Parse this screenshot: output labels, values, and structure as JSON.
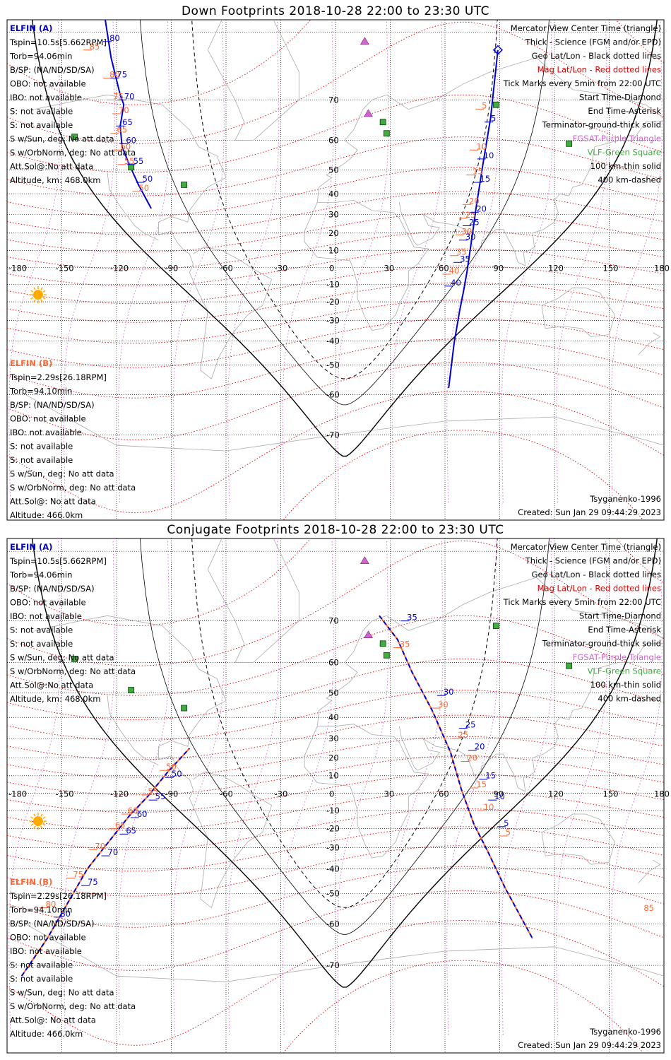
{
  "colors": {
    "elfin_a": "#0000cc",
    "elfin_b": "#ff6633",
    "mag_grid": "#dd0000",
    "geo_grid": "#000000",
    "fgm": "#cc66cc",
    "vlf": "#44aa44",
    "coast": "#aaaaaa"
  },
  "panels": [
    {
      "title": "Down Footprints 2018-10-28 22:00 to 23:30 UTC",
      "a_info": {
        "name": "ELFIN (A)",
        "lines": [
          "Tspin=10.5s[5.662RPM]",
          "Torb=94.06min",
          "B/SP: (NA/ND/SD/SA)",
          "OBO: not available",
          "IBO: not available",
          "S: not available",
          "S: not available",
          "S w/Sun, deg: No att data",
          "S w/OrbNorm, deg: No att data",
          "Att.Sol@:No att data",
          "Altitude, km: 468.0km"
        ]
      },
      "b_info": {
        "name": "ELFIN (B)",
        "lines": [
          "Tspin=2.29s[26.18RPM]",
          "Torb=94.10min",
          "B/SP: (NA/ND/SD/SA)",
          "OBO: not available",
          "IBO: not available",
          "S: not available",
          "S: not available",
          "S w/Sun, deg: No att data",
          "S w/OrbNorm, deg: No att data",
          "Att.Sol@: No att data",
          "Altitude: 466.0km"
        ]
      },
      "legend": [
        "Mercator View Center Time (triangle)",
        "Thick - Science (FGM and/or EPD)",
        "Geo Lat/Lon - Black dotted lines",
        "Mag Lat/Lon - Red dotted lines",
        "Tick Marks every 5min from 22:00 UTC",
        "Start Time-Diamond",
        "End Time-Asterisk",
        "Terminator-ground-thick solid",
        "FGSAT-Purple Triangle",
        "VLF-Green Square",
        "100 km-thin solid",
        "400 km-dashed"
      ],
      "model": "Tsyganenko-1996",
      "created": "Created: Sun Jan 29 09:44:29 2023"
    },
    {
      "title": "Conjugate Footprints 2018-10-28 22:00 to 23:30 UTC",
      "a_info": {
        "name": "ELFIN (A)",
        "lines": [
          "Tspin=10.5s[5.662RPM]",
          "Torb=94.06min",
          "B/SP: (NA/ND/SD/SA)",
          "OBO: not available",
          "IBO: not available",
          "S: not available",
          "S: not available",
          "S w/Sun, deg: No att data",
          "S w/OrbNorm, deg: No att data",
          "Att.Sol@:No att data",
          "Altitude, km: 468.0km"
        ]
      },
      "b_info": {
        "name": "ELFIN (B)",
        "lines": [
          "Tspin=2.29s[26.18RPM]",
          "Torb=94.10min",
          "B/SP: (NA/ND/SD/SA)",
          "OBO: not available",
          "IBO: not available",
          "S: not available",
          "S: not available",
          "S w/Sun, deg: No att data",
          "S w/OrbNorm, deg: No att data",
          "Att.Sol@: No att data",
          "Altitude: 466.0km"
        ]
      },
      "legend": [
        "Mercator View Center Time (triangle)",
        "Thick - Science (FGM and/or EPD)",
        "Geo Lat/Lon - Black dotted lines",
        "Mag Lat/Lon - Red dotted lines",
        "Tick Marks every 5min from 22:00 UTC",
        "Start Time-Diamond",
        "End Time-Asterisk",
        "Terminator-ground-thick solid",
        "FGSAT-Purple Triangle",
        "VLF-Green Square",
        "100 km-thin solid",
        "400 km-dashed"
      ],
      "model": "Tsyganenko-1996",
      "created": "Created: Sun Jan 29 09:44:29 2023"
    }
  ],
  "map": {
    "lon_ticks": [
      "-180",
      "-150",
      "-120",
      "-90",
      "-60",
      "-30",
      "0",
      "30",
      "60",
      "90",
      "120",
      "150",
      "180"
    ],
    "lat_ticks": [
      "70",
      "60",
      "50",
      "40",
      "30",
      "20",
      "10",
      "-10",
      "-20",
      "-30",
      "-40",
      "-50",
      "-60",
      "-70"
    ]
  },
  "tracks": {
    "down": {
      "a": [
        [
          -135,
          87
        ],
        [
          -126,
          81
        ],
        [
          -123,
          77
        ],
        [
          -118,
          71
        ],
        [
          -116,
          69
        ],
        [
          -118,
          64
        ],
        [
          -117,
          58
        ],
        [
          -113,
          52
        ],
        [
          -108,
          44
        ],
        [
          -101,
          33
        ]
      ],
      "a_ticks": [
        [
          "85",
          -131,
          84
        ],
        [
          "80",
          -125,
          79
        ],
        [
          "75",
          -121,
          74
        ],
        [
          "70",
          -117,
          70
        ],
        [
          "65",
          -118,
          64
        ],
        [
          "60",
          -116,
          59
        ],
        [
          "55",
          -112,
          52
        ],
        [
          "50",
          -107,
          45
        ]
      ],
      "b_ticks": [
        [
          "85",
          -136,
          78
        ],
        [
          "80",
          -125,
          74
        ],
        [
          "75",
          -123,
          70
        ],
        [
          "70",
          -120,
          67
        ],
        [
          "65",
          -121,
          62
        ],
        [
          "60",
          -119,
          57
        ],
        [
          "55",
          -117,
          52
        ],
        [
          "50",
          -109,
          41
        ]
      ],
      "a2": [
        [
          89,
          78
        ],
        [
          85,
          66
        ],
        [
          81,
          53
        ],
        [
          77,
          33
        ],
        [
          75,
          19
        ],
        [
          72,
          -3
        ],
        [
          70,
          -15
        ],
        [
          68,
          -25
        ],
        [
          65,
          -41
        ],
        [
          62,
          -58
        ]
      ],
      "a2_ticks": [
        [
          "5",
          84,
          65
        ],
        [
          "10",
          80,
          54
        ],
        [
          "15",
          78,
          45
        ],
        [
          "20",
          76,
          31
        ],
        [
          "25",
          72,
          24
        ],
        [
          "30",
          70,
          16
        ],
        [
          "35",
          67,
          3
        ],
        [
          "40",
          62,
          -11
        ]
      ],
      "b2_ticks": [
        [
          "5",
          79,
          68
        ],
        [
          "10",
          76,
          57
        ],
        [
          "15",
          74,
          48
        ],
        [
          "20",
          72,
          35
        ],
        [
          "25",
          70,
          28
        ],
        [
          "30",
          68,
          19
        ],
        [
          "35",
          65,
          7
        ],
        [
          "40",
          61,
          -4
        ]
      ]
    },
    "conj": {
      "a": [
        [
          -172,
          -72
        ],
        [
          -158,
          -64
        ],
        [
          -136,
          -40
        ],
        [
          -126,
          -29
        ],
        [
          -113,
          -13
        ],
        [
          -103,
          -2
        ],
        [
          -92,
          12
        ],
        [
          -80,
          25
        ]
      ],
      "a_ticks": [
        [
          "80",
          -152,
          -58
        ],
        [
          "75",
          -137,
          -47
        ],
        [
          "70",
          -126,
          -34
        ],
        [
          "65",
          -116,
          -23
        ],
        [
          "60",
          -110,
          -14
        ],
        [
          "55",
          -100,
          -4
        ],
        [
          "50",
          -91,
          9
        ]
      ],
      "b_ticks": [
        [
          "80",
          -160,
          -55
        ],
        [
          "75",
          -145,
          -44
        ],
        [
          "70",
          -133,
          -31
        ],
        [
          "65",
          -122,
          -20
        ],
        [
          "60",
          -115,
          -12
        ],
        [
          "55",
          -104,
          -1
        ],
        [
          "50",
          -94,
          13
        ]
      ],
      "a2": [
        [
          24,
          71
        ],
        [
          34,
          66
        ],
        [
          42,
          57
        ],
        [
          53,
          43
        ],
        [
          63,
          23
        ],
        [
          69,
          2
        ],
        [
          76,
          -18
        ],
        [
          83,
          -31
        ],
        [
          93,
          -48
        ],
        [
          108,
          -64
        ]
      ],
      "a2_ticks": [
        [
          "35",
          38,
          70
        ],
        [
          "30",
          58,
          49
        ],
        [
          "25",
          70,
          35
        ],
        [
          "20",
          75,
          24
        ],
        [
          "15",
          81,
          8
        ],
        [
          "10",
          86,
          -4
        ],
        [
          "5",
          91,
          -19
        ]
      ],
      "b2_ticks": [
        [
          "35",
          34,
          64
        ],
        [
          "30",
          55,
          44
        ],
        [
          "25",
          66,
          30
        ],
        [
          "20",
          71,
          18
        ],
        [
          "15",
          76,
          3
        ],
        [
          "10",
          80,
          -10
        ],
        [
          "5",
          92,
          -24
        ]
      ],
      "b_extra": [
        [
          "85",
          172,
          -56
        ]
      ]
    }
  },
  "markers": {
    "fgm": [
      [
        16,
        79
      ],
      [
        18,
        67
      ]
    ],
    "vlf": [
      [
        -143,
        61
      ],
      [
        -112,
        51
      ],
      [
        -83,
        44
      ],
      [
        26,
        65
      ],
      [
        28,
        62
      ],
      [
        88,
        69
      ],
      [
        128,
        59
      ]
    ],
    "sun": [
      -163,
      -16
    ]
  }
}
